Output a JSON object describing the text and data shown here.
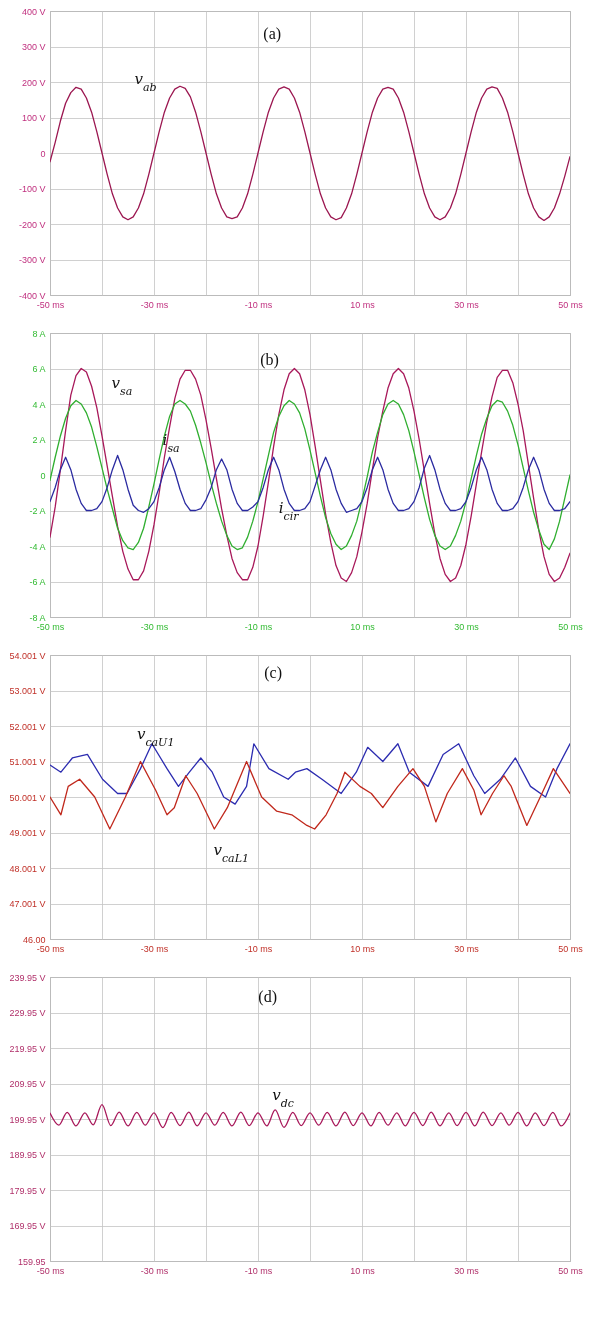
{
  "chart_data": [
    {
      "type": "line",
      "title": "(a)",
      "x": [
        -50,
        -49,
        -48,
        -47,
        -46,
        -45,
        -44,
        -43,
        -42,
        -41,
        -40,
        -39,
        -38,
        -37,
        -36,
        -35,
        -34,
        -33,
        -32,
        -31,
        -30,
        -29,
        -28,
        -27,
        -26,
        -25,
        -24,
        -23,
        -22,
        -21,
        -20,
        -19,
        -18,
        -17,
        -16,
        -15,
        -14,
        -13,
        -12,
        -11,
        -10,
        -9,
        -8,
        -7,
        -6,
        -5,
        -4,
        -3,
        -2,
        -1,
        0,
        1,
        2,
        3,
        4,
        5,
        6,
        7,
        8,
        9,
        10,
        11,
        12,
        13,
        14,
        15,
        16,
        17,
        18,
        19,
        20,
        21,
        22,
        23,
        24,
        25,
        26,
        27,
        28,
        29,
        30,
        31,
        32,
        33,
        34,
        35,
        36,
        37,
        38,
        39,
        40,
        41,
        42,
        43,
        44,
        45,
        46,
        47,
        48,
        49,
        50
      ],
      "xlim": [
        -50,
        50
      ],
      "xticks": [
        {
          "value": -50,
          "label": "-50 ms"
        },
        {
          "value": -40,
          "label": null
        },
        {
          "value": -30,
          "label": "-30 ms"
        },
        {
          "value": -20,
          "label": null
        },
        {
          "value": -10,
          "label": "-10 ms"
        },
        {
          "value": 0,
          "label": null
        },
        {
          "value": 10,
          "label": "10 ms"
        },
        {
          "value": 20,
          "label": null
        },
        {
          "value": 30,
          "label": "30 ms"
        },
        {
          "value": 40,
          "label": null
        },
        {
          "value": 50,
          "label": "50 ms"
        }
      ],
      "ylim": [
        -400,
        400
      ],
      "yticks": [
        {
          "value": 400,
          "label": "400 V"
        },
        {
          "value": 300,
          "label": "300 V"
        },
        {
          "value": 200,
          "label": "200 V"
        },
        {
          "value": 100,
          "label": "100 V"
        },
        0,
        {
          "value": -100,
          "label": "-100 V"
        },
        {
          "value": -200,
          "label": "-200 V"
        },
        {
          "value": -300,
          "label": "-300 V"
        },
        {
          "value": -400,
          "label": "-400 V"
        }
      ],
      "grid": true,
      "series": [
        {
          "name": "v$_{ab}$",
          "color": "#9b1650",
          "values": [
            -25,
            30,
            90,
            140,
            170,
            185,
            180,
            155,
            115,
            60,
            0,
            -60,
            -115,
            -155,
            -180,
            -188,
            -180,
            -155,
            -115,
            -60,
            0,
            60,
            115,
            155,
            180,
            188,
            182,
            158,
            115,
            60,
            0,
            -60,
            -115,
            -155,
            -180,
            -185,
            -180,
            -155,
            -115,
            -60,
            0,
            60,
            115,
            155,
            180,
            186,
            180,
            155,
            115,
            60,
            0,
            -60,
            -115,
            -155,
            -180,
            -188,
            -182,
            -155,
            -115,
            -60,
            0,
            60,
            115,
            155,
            180,
            185,
            180,
            155,
            115,
            60,
            0,
            -60,
            -115,
            -155,
            -180,
            -188,
            -180,
            -155,
            -115,
            -60,
            0,
            60,
            115,
            155,
            180,
            186,
            182,
            155,
            115,
            60,
            0,
            -60,
            -115,
            -155,
            -180,
            -190,
            -180,
            -155,
            -115,
            -65,
            -10
          ]
        }
      ]
    },
    {
      "type": "line",
      "title": "(b)",
      "x": [
        -50,
        -49,
        -48,
        -47,
        -46,
        -45,
        -44,
        -43,
        -42,
        -41,
        -40,
        -39,
        -38,
        -37,
        -36,
        -35,
        -34,
        -33,
        -32,
        -31,
        -30,
        -29,
        -28,
        -27,
        -26,
        -25,
        -24,
        -23,
        -22,
        -21,
        -20,
        -19,
        -18,
        -17,
        -16,
        -15,
        -14,
        -13,
        -12,
        -11,
        -10,
        -9,
        -8,
        -7,
        -6,
        -5,
        -4,
        -3,
        -2,
        -1,
        0,
        1,
        2,
        3,
        4,
        5,
        6,
        7,
        8,
        9,
        10,
        11,
        12,
        13,
        14,
        15,
        16,
        17,
        18,
        19,
        20,
        21,
        22,
        23,
        24,
        25,
        26,
        27,
        28,
        29,
        30,
        31,
        32,
        33,
        34,
        35,
        36,
        37,
        38,
        39,
        40,
        41,
        42,
        43,
        44,
        45,
        46,
        47,
        48,
        49,
        50
      ],
      "xlim": [
        -50,
        50
      ],
      "xticks": [
        {
          "value": -50,
          "label": "-50 ms"
        },
        {
          "value": -40,
          "label": null
        },
        {
          "value": -30,
          "label": "-30 ms"
        },
        {
          "value": -20,
          "label": null
        },
        {
          "value": -10,
          "label": "-10 ms"
        },
        {
          "value": 0,
          "label": null
        },
        {
          "value": 10,
          "label": "10 ms"
        },
        {
          "value": 20,
          "label": null
        },
        {
          "value": 30,
          "label": "30 ms"
        },
        {
          "value": 40,
          "label": null
        },
        {
          "value": 50,
          "label": "50 ms"
        }
      ],
      "ylim": [
        -8,
        8
      ],
      "yticks": [
        {
          "value": 8,
          "label": "8 A"
        },
        {
          "value": 6,
          "label": "6 A"
        },
        {
          "value": 4,
          "label": "4 A"
        },
        {
          "value": 2,
          "label": "2 A"
        },
        0,
        {
          "value": -2,
          "label": "-2 A"
        },
        {
          "value": -4,
          "label": "-4 A"
        },
        {
          "value": -6,
          "label": "-6 A"
        },
        {
          "value": -8,
          "label": "-8 A"
        }
      ],
      "grid": true,
      "series": [
        {
          "name": "v$_{sa}$",
          "color": "#a8185a",
          "values": [
            -3.5,
            -1.8,
            0.3,
            2.5,
            4.5,
            5.6,
            6.0,
            5.8,
            5.0,
            3.8,
            2.2,
            0.5,
            -1.2,
            -2.9,
            -4.3,
            -5.3,
            -5.9,
            -5.9,
            -5.4,
            -4.3,
            -2.8,
            -1.0,
            1.0,
            2.7,
            4.3,
            5.4,
            5.9,
            5.9,
            5.4,
            4.5,
            3.1,
            1.5,
            -0.2,
            -1.9,
            -3.4,
            -4.7,
            -5.5,
            -5.9,
            -5.9,
            -5.2,
            -4.0,
            -2.3,
            -0.4,
            1.6,
            3.4,
            4.8,
            5.7,
            6.0,
            5.7,
            4.8,
            3.4,
            1.6,
            -0.3,
            -2.2,
            -3.8,
            -5.1,
            -5.8,
            -6.0,
            -5.5,
            -4.6,
            -3.2,
            -1.6,
            0.3,
            2.1,
            3.6,
            4.9,
            5.7,
            6.0,
            5.7,
            4.9,
            3.6,
            2.0,
            0.2,
            -1.6,
            -3.3,
            -4.7,
            -5.6,
            -6.0,
            -5.8,
            -5.1,
            -3.9,
            -2.3,
            -0.5,
            1.3,
            3.0,
            4.4,
            5.5,
            5.9,
            5.9,
            5.2,
            4.0,
            2.5,
            0.6,
            -1.3,
            -3.1,
            -4.6,
            -5.6,
            -6.0,
            -5.8,
            -5.2,
            -4.4
          ]
        },
        {
          "name": "i$_{sa}$",
          "color": "#2fae2f",
          "values": [
            -0.3,
            1.0,
            2.2,
            3.2,
            3.9,
            4.2,
            4.0,
            3.5,
            2.7,
            1.6,
            0.4,
            -0.8,
            -1.9,
            -3.0,
            -3.7,
            -4.1,
            -4.2,
            -3.8,
            -3.0,
            -1.8,
            -0.5,
            0.9,
            2.2,
            3.3,
            4.0,
            4.2,
            4.0,
            3.6,
            2.8,
            1.8,
            0.7,
            -0.5,
            -1.6,
            -2.6,
            -3.4,
            -4.0,
            -4.2,
            -4.1,
            -3.5,
            -2.6,
            -1.5,
            -0.2,
            1.1,
            2.4,
            3.3,
            3.9,
            4.2,
            4.0,
            3.5,
            2.6,
            1.4,
            0.1,
            -1.2,
            -2.4,
            -3.3,
            -3.9,
            -4.2,
            -4.0,
            -3.4,
            -2.6,
            -1.4,
            -0.1,
            1.3,
            2.4,
            3.4,
            4.0,
            4.2,
            4.0,
            3.4,
            2.5,
            1.3,
            0.0,
            -1.3,
            -2.5,
            -3.4,
            -4.0,
            -4.2,
            -4.0,
            -3.4,
            -2.6,
            -1.5,
            -0.2,
            1.1,
            2.3,
            3.2,
            3.9,
            4.2,
            4.1,
            3.6,
            2.8,
            1.7,
            0.4,
            -0.9,
            -2.1,
            -3.1,
            -3.9,
            -4.2,
            -3.6,
            -2.6,
            -1.3,
            0.0
          ]
        },
        {
          "name": "i$_{cir}$",
          "color": "#2a2aa0",
          "values": [
            -1.5,
            -0.7,
            0.3,
            1.0,
            0.3,
            -0.8,
            -1.6,
            -2.0,
            -2.0,
            -1.9,
            -1.5,
            -0.7,
            0.3,
            1.1,
            0.3,
            -0.8,
            -1.7,
            -2.0,
            -2.1,
            -1.9,
            -1.5,
            -0.7,
            0.3,
            1.0,
            0.2,
            -0.8,
            -1.6,
            -2.0,
            -2.0,
            -1.9,
            -1.4,
            -0.7,
            0.3,
            0.9,
            0.3,
            -0.8,
            -1.6,
            -2.0,
            -2.0,
            -1.8,
            -1.5,
            -0.7,
            0.3,
            1.0,
            0.3,
            -0.8,
            -1.6,
            -2.0,
            -2.0,
            -1.9,
            -1.5,
            -0.6,
            0.3,
            1.0,
            0.3,
            -0.8,
            -1.6,
            -2.1,
            -2.0,
            -1.9,
            -1.5,
            -0.7,
            0.3,
            1.0,
            0.3,
            -0.8,
            -1.6,
            -2.0,
            -2.0,
            -1.9,
            -1.5,
            -0.7,
            0.4,
            1.1,
            0.3,
            -0.8,
            -1.6,
            -2.0,
            -2.0,
            -1.9,
            -1.5,
            -0.7,
            0.3,
            1.0,
            0.3,
            -0.8,
            -1.6,
            -2.0,
            -2.0,
            -1.9,
            -1.5,
            -0.7,
            0.3,
            1.0,
            0.3,
            -0.8,
            -1.6,
            -2.0,
            -2.0,
            -1.9,
            -1.5
          ]
        }
      ]
    },
    {
      "type": "line",
      "title": "(c)",
      "xlim": [
        -50,
        50
      ],
      "xticks": [
        {
          "value": -50,
          "label": "-50 ms"
        },
        {
          "value": -40,
          "label": null
        },
        {
          "value": -30,
          "label": "-30 ms"
        },
        {
          "value": -20,
          "label": null
        },
        {
          "value": -10,
          "label": "-10 ms"
        },
        {
          "value": 0,
          "label": null
        },
        {
          "value": 10,
          "label": "10 ms"
        },
        {
          "value": 20,
          "label": null
        },
        {
          "value": 30,
          "label": "30 ms"
        },
        {
          "value": 40,
          "label": null
        },
        {
          "value": 50,
          "label": "50 ms"
        }
      ],
      "ylim": [
        46.001,
        54.001
      ],
      "yticks": [
        {
          "value": 54.001,
          "label": "54.001 V"
        },
        {
          "value": 53.001,
          "label": "53.001 V"
        },
        {
          "value": 52.001,
          "label": "52.001 V"
        },
        {
          "value": 51.001,
          "label": "51.001 V"
        },
        {
          "value": 50.001,
          "label": "50.001 V"
        },
        {
          "value": 49.001,
          "label": "49.001 V"
        },
        {
          "value": 48.001,
          "label": "48.001 V"
        },
        {
          "value": 47.001,
          "label": "47.001 V"
        },
        {
          "value": 46.001,
          "label": "46.00"
        }
      ],
      "grid": true,
      "series": [
        {
          "name": "v$_{caU1}$",
          "color": "#2c2cb0",
          "x": [
            -50,
            -47.9,
            -45.7,
            -42.8,
            -39.9,
            -37,
            -35.2,
            -32.6,
            -30.4,
            -27.5,
            -25.3,
            -23.2,
            -21,
            -18.8,
            -16.6,
            -14.4,
            -12.2,
            -10.8,
            -7.9,
            -4.2,
            -2.8,
            -0.6,
            2.3,
            6,
            8.9,
            11.1,
            14,
            16.9,
            19.1,
            22.7,
            25.6,
            28.6,
            31.5,
            33.6,
            36.6,
            39.5,
            42.4,
            45.3,
            47.5,
            50
          ],
          "values": [
            50.9,
            50.7,
            51.1,
            51.2,
            50.5,
            50.1,
            50.1,
            50.8,
            51.5,
            50.8,
            50.3,
            50.7,
            51.1,
            50.7,
            50.0,
            49.8,
            50.3,
            51.5,
            50.8,
            50.5,
            50.7,
            50.8,
            50.5,
            50.1,
            50.7,
            51.4,
            51.0,
            51.5,
            50.7,
            50.3,
            51.2,
            51.5,
            50.6,
            50.1,
            50.5,
            51.1,
            50.3,
            50.0,
            50.8,
            51.5
          ]
        },
        {
          "name": "v$_{caL1}$",
          "color": "#c0281c",
          "x": [
            -50,
            -47.9,
            -46.5,
            -44.3,
            -41.4,
            -38.5,
            -35.5,
            -32.6,
            -29.7,
            -27.5,
            -26.1,
            -23.9,
            -21.7,
            -18.4,
            -15.9,
            -12.2,
            -9.3,
            -6.4,
            -3.5,
            -0.6,
            0.9,
            3.1,
            5.2,
            6.7,
            9.6,
            11.8,
            14,
            16.9,
            19.8,
            22,
            24.2,
            26.4,
            29.3,
            31.5,
            32.9,
            35.1,
            37.3,
            38.7,
            41.7,
            44.6,
            46.8,
            50
          ],
          "values": [
            50.0,
            49.5,
            50.3,
            50.5,
            50.0,
            49.1,
            50.0,
            51.0,
            50.2,
            49.5,
            49.7,
            50.6,
            50.1,
            49.1,
            49.7,
            51.0,
            50.0,
            49.6,
            49.5,
            49.2,
            49.1,
            49.5,
            50.1,
            50.7,
            50.3,
            50.1,
            49.7,
            50.3,
            50.8,
            50.3,
            49.3,
            50.1,
            50.8,
            50.2,
            49.5,
            50.1,
            50.6,
            50.3,
            49.2,
            50.1,
            50.8,
            50.1
          ]
        }
      ]
    },
    {
      "type": "line",
      "title": "(d)",
      "xlim": [
        -50,
        50
      ],
      "xticks": [
        {
          "value": -50,
          "label": "-50 ms"
        },
        {
          "value": -40,
          "label": null
        },
        {
          "value": -30,
          "label": "-30 ms"
        },
        {
          "value": -20,
          "label": null
        },
        {
          "value": -10,
          "label": "-10 ms"
        },
        {
          "value": 0,
          "label": null
        },
        {
          "value": 10,
          "label": "10 ms"
        },
        {
          "value": 20,
          "label": null
        },
        {
          "value": 30,
          "label": "30 ms"
        },
        {
          "value": 40,
          "label": null
        },
        {
          "value": 50,
          "label": "50 ms"
        }
      ],
      "ylim": [
        159.95,
        239.95
      ],
      "yticks": [
        {
          "value": 239.95,
          "label": "239.95 V"
        },
        {
          "value": 229.95,
          "label": "229.95 V"
        },
        {
          "value": 219.95,
          "label": "219.95 V"
        },
        {
          "value": 209.95,
          "label": "209.95 V"
        },
        {
          "value": 199.95,
          "label": "199.95 V"
        },
        {
          "value": 189.95,
          "label": "189.95 V"
        },
        {
          "value": 179.95,
          "label": "179.95 V"
        },
        {
          "value": 169.95,
          "label": "169.95 V"
        },
        {
          "value": 159.95,
          "label": "159.95"
        }
      ],
      "grid": true,
      "series": [
        {
          "name": "v$_{dc}$",
          "color": "#a8185a",
          "x": [
            -50,
            -48.3,
            -46.7,
            -45,
            -43.3,
            -41.7,
            -40,
            -38.3,
            -36.7,
            -35,
            -33.3,
            -31.7,
            -30,
            -28.3,
            -26.7,
            -25,
            -23.3,
            -21.7,
            -20,
            -18.3,
            -16.7,
            -15,
            -13.3,
            -11.7,
            -10,
            -8.3,
            -6.7,
            -5,
            -3.3,
            -1.7,
            0,
            1.7,
            3.3,
            5,
            6.7,
            8.3,
            10,
            11.7,
            13.3,
            15,
            16.7,
            18.3,
            20,
            21.7,
            23.3,
            25,
            26.7,
            28.3,
            30,
            31.7,
            33.3,
            35,
            36.7,
            38.3,
            40,
            41.7,
            43.3,
            45,
            46.7,
            48.3,
            50
          ],
          "values": [
            201.6,
            198.2,
            201.8,
            198.0,
            201.7,
            198.3,
            204.0,
            198.1,
            201.9,
            198.0,
            201.8,
            198.2,
            201.7,
            197.5,
            201.8,
            198.1,
            201.9,
            198.0,
            201.7,
            198.2,
            201.8,
            198.0,
            201.9,
            198.1,
            201.7,
            198.0,
            202.5,
            197.6,
            201.8,
            198.1,
            201.7,
            198.2,
            201.8,
            198.0,
            201.9,
            198.1,
            201.7,
            198.0,
            201.8,
            198.2,
            201.7,
            198.0,
            201.8,
            198.1,
            201.9,
            198.0,
            201.7,
            198.1,
            201.8,
            198.0,
            201.9,
            198.1,
            201.7,
            198.2,
            201.8,
            198.0,
            201.7,
            198.1,
            201.8,
            198.0,
            201.6
          ]
        }
      ]
    }
  ]
}
